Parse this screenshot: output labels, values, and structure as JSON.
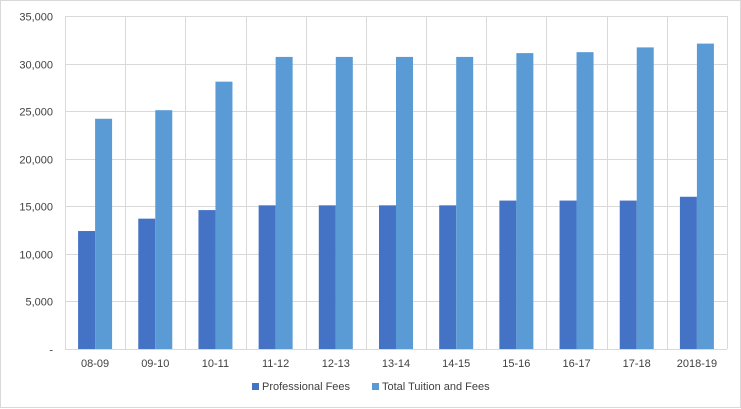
{
  "chart_data": {
    "type": "bar",
    "title": "",
    "xlabel": "",
    "ylabel": "",
    "categories": [
      "08-09",
      "09-10",
      "10-11",
      "11-12",
      "12-13",
      "13-14",
      "14-15",
      "15-16",
      "16-17",
      "17-18",
      "2018-19"
    ],
    "series": [
      {
        "name": "Professional Fees",
        "color": "#4472c4",
        "values": [
          12400,
          13700,
          14600,
          15100,
          15100,
          15100,
          15100,
          15600,
          15600,
          15600,
          16000
        ]
      },
      {
        "name": "Total Tuition and Fees",
        "color": "#5b9bd5",
        "values": [
          24200,
          25100,
          28100,
          30700,
          30700,
          30700,
          30700,
          31100,
          31200,
          31700,
          32100
        ]
      }
    ],
    "ylim": [
      0,
      35000
    ],
    "y_ticks": [
      0,
      5000,
      10000,
      15000,
      20000,
      25000,
      30000,
      35000
    ],
    "y_tick_labels": [
      "-",
      "5,000",
      "10,000",
      "15,000",
      "20,000",
      "25,000",
      "30,000",
      "35,000"
    ],
    "grid": "vertical category dividers and horizontal value lines",
    "legend_position": "bottom"
  }
}
